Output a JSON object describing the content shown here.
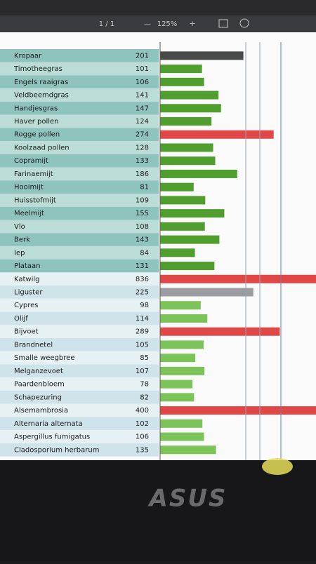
{
  "toolbar": {
    "page": "1 / 1",
    "zoom": "125%"
  },
  "brand": "ASUS",
  "chart_data": {
    "type": "bar",
    "orientation": "horizontal",
    "categories": [
      "Kropaar",
      "Timotheegras",
      "Engels raaigras",
      "Veldbeemdgras",
      "Handjesgras",
      "Haver pollen",
      "Rogge pollen",
      "Koolzaad pollen",
      "Copramijt",
      "Farinaemijt",
      "Hooimijt",
      "Huisstofmijt",
      "Meelmijt",
      "Vlo",
      "Berk",
      "Iep",
      "Plataan",
      "Katwilg",
      "Liguster",
      "Cypres",
      "Olijf",
      "Bijvoet",
      "Brandnetel",
      "Smalle weegbree",
      "Melganzevoet",
      "Paardenbloem",
      "Schapezuring",
      "Alsemambrosia",
      "Alternaria alternata",
      "Aspergillus fumigatus",
      "Cladosporium herbarum"
    ],
    "values": [
      201,
      101,
      106,
      141,
      147,
      124,
      274,
      128,
      133,
      186,
      81,
      109,
      155,
      108,
      143,
      84,
      131,
      836,
      225,
      98,
      114,
      289,
      105,
      85,
      107,
      78,
      82,
      400,
      102,
      106,
      135
    ],
    "colors": [
      "#474a48",
      "#4f9e2e",
      "#4f9e2e",
      "#4f9e2e",
      "#4f9e2e",
      "#4f9e2e",
      "#e04848",
      "#4f9e2e",
      "#4f9e2e",
      "#4f9e2e",
      "#4f9e2e",
      "#4f9e2e",
      "#4f9e2e",
      "#4f9e2e",
      "#4f9e2e",
      "#4f9e2e",
      "#4f9e2e",
      "#e04848",
      "#9c9ca0",
      "#7cc35a",
      "#7cc35a",
      "#e04848",
      "#7cc35a",
      "#7cc35a",
      "#7cc35a",
      "#7cc35a",
      "#7cc35a",
      "#e04848",
      "#7cc35a",
      "#7cc35a",
      "#7cc35a"
    ]
  }
}
